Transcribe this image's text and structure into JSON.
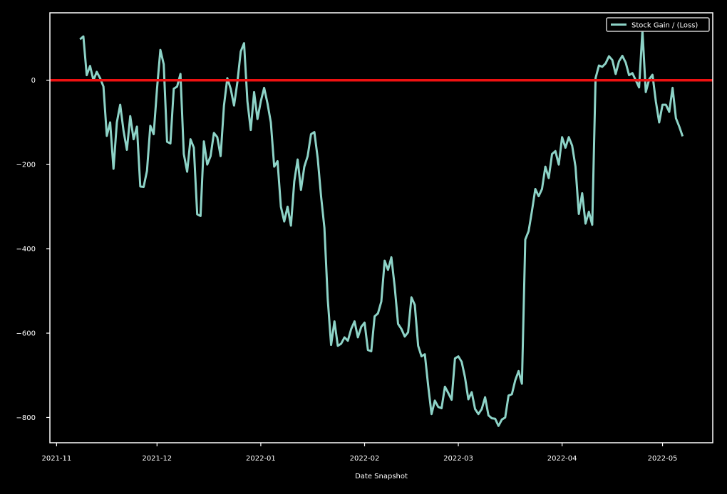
{
  "chart_data": {
    "type": "line",
    "xlabel": "Date Snapshot",
    "ylabel": "",
    "title": "",
    "xlim": [
      "2021-10-30",
      "2022-05-16"
    ],
    "ylim": [
      -860,
      160
    ],
    "x_ticks": [
      {
        "date": "2021-11-01",
        "label": "2021-11"
      },
      {
        "date": "2021-12-01",
        "label": "2021-12"
      },
      {
        "date": "2022-01-01",
        "label": "2022-01"
      },
      {
        "date": "2022-02-01",
        "label": "2022-02"
      },
      {
        "date": "2022-03-01",
        "label": "2022-03"
      },
      {
        "date": "2022-04-01",
        "label": "2022-04"
      },
      {
        "date": "2022-05-01",
        "label": "2022-05"
      }
    ],
    "y_ticks": [
      0,
      -200,
      -400,
      -600,
      -800
    ],
    "legend": {
      "position": "top-right"
    },
    "grid": false,
    "reference_line": {
      "y": 0,
      "color": "#ee1111"
    },
    "series": [
      {
        "name": "Stock Gain / (Loss)",
        "color": "#8dd3c7",
        "points": [
          [
            "2021-11-08",
            97
          ],
          [
            "2021-11-09",
            104
          ],
          [
            "2021-11-10",
            12
          ],
          [
            "2021-11-11",
            34
          ],
          [
            "2021-11-12",
            0
          ],
          [
            "2021-11-13",
            20
          ],
          [
            "2021-11-14",
            5
          ],
          [
            "2021-11-15",
            -15
          ],
          [
            "2021-11-16",
            -132
          ],
          [
            "2021-11-17",
            -100
          ],
          [
            "2021-11-18",
            -210
          ],
          [
            "2021-11-19",
            -100
          ],
          [
            "2021-11-20",
            -58
          ],
          [
            "2021-11-21",
            -120
          ],
          [
            "2021-11-22",
            -165
          ],
          [
            "2021-11-23",
            -85
          ],
          [
            "2021-11-24",
            -140
          ],
          [
            "2021-11-25",
            -110
          ],
          [
            "2021-11-26",
            -252
          ],
          [
            "2021-11-27",
            -253
          ],
          [
            "2021-11-28",
            -215
          ],
          [
            "2021-11-29",
            -108
          ],
          [
            "2021-11-30",
            -128
          ],
          [
            "2021-12-01",
            -20
          ],
          [
            "2021-12-02",
            72
          ],
          [
            "2021-12-03",
            38
          ],
          [
            "2021-12-04",
            -146
          ],
          [
            "2021-12-05",
            -150
          ],
          [
            "2021-12-06",
            -20
          ],
          [
            "2021-12-07",
            -15
          ],
          [
            "2021-12-08",
            15
          ],
          [
            "2021-12-09",
            -175
          ],
          [
            "2021-12-10",
            -217
          ],
          [
            "2021-12-11",
            -140
          ],
          [
            "2021-12-12",
            -160
          ],
          [
            "2021-12-13",
            -318
          ],
          [
            "2021-12-14",
            -322
          ],
          [
            "2021-12-15",
            -145
          ],
          [
            "2021-12-16",
            -200
          ],
          [
            "2021-12-17",
            -180
          ],
          [
            "2021-12-18",
            -125
          ],
          [
            "2021-12-19",
            -135
          ],
          [
            "2021-12-20",
            -180
          ],
          [
            "2021-12-21",
            -60
          ],
          [
            "2021-12-22",
            5
          ],
          [
            "2021-12-23",
            -20
          ],
          [
            "2021-12-24",
            -60
          ],
          [
            "2021-12-25",
            -5
          ],
          [
            "2021-12-26",
            68
          ],
          [
            "2021-12-27",
            88
          ],
          [
            "2021-12-28",
            -50
          ],
          [
            "2021-12-29",
            -118
          ],
          [
            "2021-12-30",
            -28
          ],
          [
            "2021-12-31",
            -92
          ],
          [
            "2022-01-01",
            -50
          ],
          [
            "2022-01-02",
            -18
          ],
          [
            "2022-01-03",
            -55
          ],
          [
            "2022-01-04",
            -100
          ],
          [
            "2022-01-05",
            -205
          ],
          [
            "2022-01-06",
            -192
          ],
          [
            "2022-01-07",
            -300
          ],
          [
            "2022-01-08",
            -335
          ],
          [
            "2022-01-09",
            -300
          ],
          [
            "2022-01-10",
            -345
          ],
          [
            "2022-01-11",
            -240
          ],
          [
            "2022-01-12",
            -188
          ],
          [
            "2022-01-13",
            -260
          ],
          [
            "2022-01-14",
            -205
          ],
          [
            "2022-01-15",
            -180
          ],
          [
            "2022-01-16",
            -128
          ],
          [
            "2022-01-17",
            -123
          ],
          [
            "2022-01-18",
            -185
          ],
          [
            "2022-01-19",
            -275
          ],
          [
            "2022-01-20",
            -350
          ],
          [
            "2022-01-21",
            -520
          ],
          [
            "2022-01-22",
            -628
          ],
          [
            "2022-01-23",
            -572
          ],
          [
            "2022-01-24",
            -630
          ],
          [
            "2022-01-25",
            -625
          ],
          [
            "2022-01-26",
            -610
          ],
          [
            "2022-01-27",
            -618
          ],
          [
            "2022-01-28",
            -590
          ],
          [
            "2022-01-29",
            -572
          ],
          [
            "2022-01-30",
            -610
          ],
          [
            "2022-01-31",
            -585
          ],
          [
            "2022-02-01",
            -575
          ],
          [
            "2022-02-02",
            -640
          ],
          [
            "2022-02-03",
            -643
          ],
          [
            "2022-02-04",
            -560
          ],
          [
            "2022-02-05",
            -553
          ],
          [
            "2022-02-06",
            -525
          ],
          [
            "2022-02-07",
            -428
          ],
          [
            "2022-02-08",
            -450
          ],
          [
            "2022-02-09",
            -420
          ],
          [
            "2022-02-10",
            -490
          ],
          [
            "2022-02-11",
            -578
          ],
          [
            "2022-02-12",
            -590
          ],
          [
            "2022-02-13",
            -608
          ],
          [
            "2022-02-14",
            -598
          ],
          [
            "2022-02-15",
            -515
          ],
          [
            "2022-02-16",
            -533
          ],
          [
            "2022-02-17",
            -630
          ],
          [
            "2022-02-18",
            -655
          ],
          [
            "2022-02-19",
            -650
          ],
          [
            "2022-02-20",
            -725
          ],
          [
            "2022-02-21",
            -792
          ],
          [
            "2022-02-22",
            -760
          ],
          [
            "2022-02-23",
            -775
          ],
          [
            "2022-02-24",
            -778
          ],
          [
            "2022-02-25",
            -727
          ],
          [
            "2022-02-26",
            -742
          ],
          [
            "2022-02-27",
            -758
          ],
          [
            "2022-02-28",
            -660
          ],
          [
            "2022-03-01",
            -655
          ],
          [
            "2022-03-02",
            -668
          ],
          [
            "2022-03-03",
            -705
          ],
          [
            "2022-03-04",
            -757
          ],
          [
            "2022-03-05",
            -740
          ],
          [
            "2022-03-06",
            -780
          ],
          [
            "2022-03-07",
            -792
          ],
          [
            "2022-03-08",
            -780
          ],
          [
            "2022-03-09",
            -752
          ],
          [
            "2022-03-10",
            -795
          ],
          [
            "2022-03-11",
            -802
          ],
          [
            "2022-03-12",
            -803
          ],
          [
            "2022-03-13",
            -820
          ],
          [
            "2022-03-14",
            -805
          ],
          [
            "2022-03-15",
            -800
          ],
          [
            "2022-03-16",
            -748
          ],
          [
            "2022-03-17",
            -745
          ],
          [
            "2022-03-18",
            -712
          ],
          [
            "2022-03-19",
            -690
          ],
          [
            "2022-03-20",
            -720
          ],
          [
            "2022-03-21",
            -378
          ],
          [
            "2022-03-22",
            -358
          ],
          [
            "2022-03-23",
            -310
          ],
          [
            "2022-03-24",
            -258
          ],
          [
            "2022-03-25",
            -275
          ],
          [
            "2022-03-26",
            -258
          ],
          [
            "2022-03-27",
            -205
          ],
          [
            "2022-03-28",
            -232
          ],
          [
            "2022-03-29",
            -175
          ],
          [
            "2022-03-30",
            -168
          ],
          [
            "2022-03-31",
            -200
          ],
          [
            "2022-04-01",
            -135
          ],
          [
            "2022-04-02",
            -160
          ],
          [
            "2022-04-03",
            -135
          ],
          [
            "2022-04-04",
            -155
          ],
          [
            "2022-04-05",
            -205
          ],
          [
            "2022-04-06",
            -317
          ],
          [
            "2022-04-07",
            -268
          ],
          [
            "2022-04-08",
            -340
          ],
          [
            "2022-04-09",
            -312
          ],
          [
            "2022-04-10",
            -343
          ],
          [
            "2022-04-11",
            5
          ],
          [
            "2022-04-12",
            35
          ],
          [
            "2022-04-13",
            32
          ],
          [
            "2022-04-14",
            40
          ],
          [
            "2022-04-15",
            57
          ],
          [
            "2022-04-16",
            48
          ],
          [
            "2022-04-17",
            15
          ],
          [
            "2022-04-18",
            45
          ],
          [
            "2022-04-19",
            58
          ],
          [
            "2022-04-20",
            42
          ],
          [
            "2022-04-21",
            12
          ],
          [
            "2022-04-22",
            17
          ],
          [
            "2022-04-23",
            0
          ],
          [
            "2022-04-24",
            -17
          ],
          [
            "2022-04-25",
            118
          ],
          [
            "2022-04-26",
            -28
          ],
          [
            "2022-04-27",
            2
          ],
          [
            "2022-04-28",
            13
          ],
          [
            "2022-04-29",
            -50
          ],
          [
            "2022-04-30",
            -100
          ],
          [
            "2022-05-01",
            -58
          ],
          [
            "2022-05-02",
            -58
          ],
          [
            "2022-05-03",
            -75
          ],
          [
            "2022-05-04",
            -18
          ],
          [
            "2022-05-05",
            -90
          ],
          [
            "2022-05-06",
            -110
          ],
          [
            "2022-05-07",
            -133
          ]
        ]
      }
    ]
  }
}
